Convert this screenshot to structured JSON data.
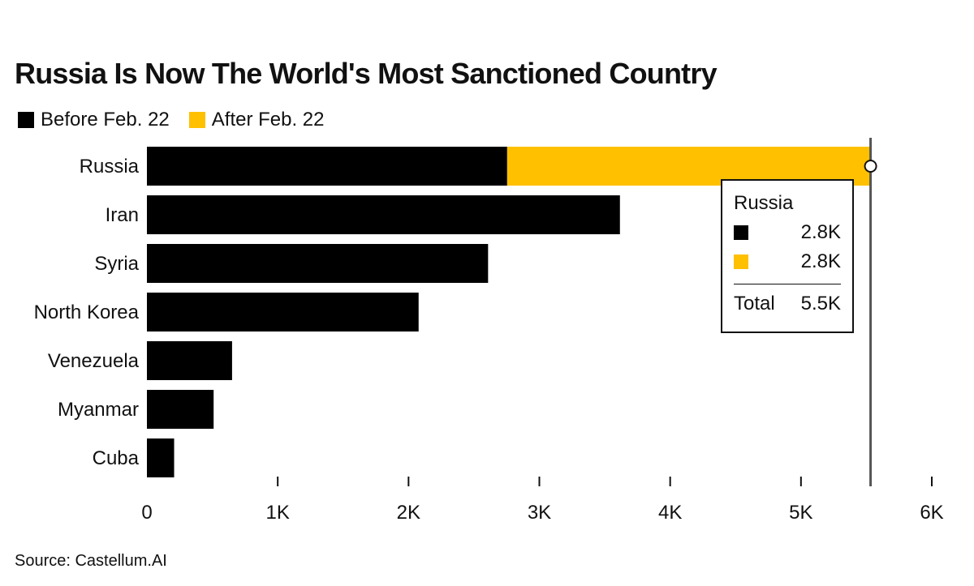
{
  "title": "Russia Is Now The World's Most Sanctioned Country",
  "source": "Source: Castellum.AI",
  "colors": {
    "before": "#000000",
    "after": "#ffc000"
  },
  "legend": [
    "Before Feb. 22",
    "After Feb. 22"
  ],
  "tooltip": {
    "title": "Russia",
    "before_value": "2.8K",
    "after_value": "2.8K",
    "total_label": "Total",
    "total_value": "5.5K"
  },
  "chart_data": {
    "type": "bar",
    "orientation": "horizontal",
    "stacked": true,
    "categories": [
      "Russia",
      "Iran",
      "Syria",
      "North Korea",
      "Venezuela",
      "Myanmar",
      "Cuba"
    ],
    "series": [
      {
        "name": "Before Feb. 22",
        "values": [
          2754,
          3616,
          2608,
          2077,
          651,
          510,
          208
        ]
      },
      {
        "name": "After Feb. 22",
        "values": [
          2778,
          0,
          0,
          0,
          0,
          0,
          0
        ]
      }
    ],
    "xlim": [
      0,
      6000
    ],
    "xticks": [
      0,
      1000,
      2000,
      3000,
      4000,
      5000,
      6000
    ],
    "xtick_labels": [
      "0",
      "1K",
      "2K",
      "3K",
      "4K",
      "5K",
      "6K"
    ],
    "highlight": {
      "category": "Russia",
      "total": 5532
    },
    "grid": false,
    "legend_position": "top-left"
  }
}
